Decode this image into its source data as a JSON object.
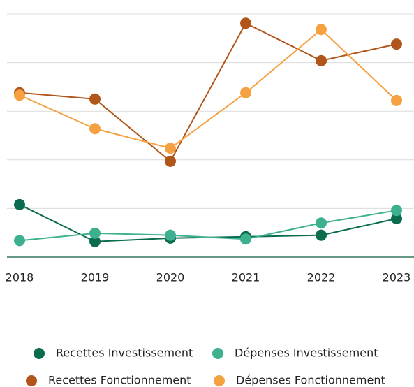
{
  "chart_data": {
    "type": "line",
    "x": [
      "2018",
      "2019",
      "2020",
      "2021",
      "2022",
      "2023"
    ],
    "series": [
      {
        "name": "Recettes Investissement",
        "color": "#0b6b4f",
        "values": [
          1.08,
          0.32,
          0.39,
          0.42,
          0.45,
          0.79
        ]
      },
      {
        "name": "Dépenses Investissement",
        "color": "#3fb08f",
        "values": [
          0.34,
          0.49,
          0.45,
          0.37,
          0.7,
          0.96
        ]
      },
      {
        "name": "Recettes Fonctionnement",
        "color": "#b0561a",
        "values": [
          3.38,
          3.25,
          1.97,
          4.81,
          4.04,
          4.38
        ]
      },
      {
        "name": "Dépenses Fonctionnement",
        "color": "#f5a142",
        "values": [
          3.33,
          2.64,
          2.24,
          3.38,
          4.68,
          3.22
        ]
      }
    ],
    "ylim": [
      0,
      5
    ],
    "yticks": [
      0,
      1,
      2,
      3,
      4,
      5
    ],
    "grid": true,
    "legend": "bottom"
  }
}
